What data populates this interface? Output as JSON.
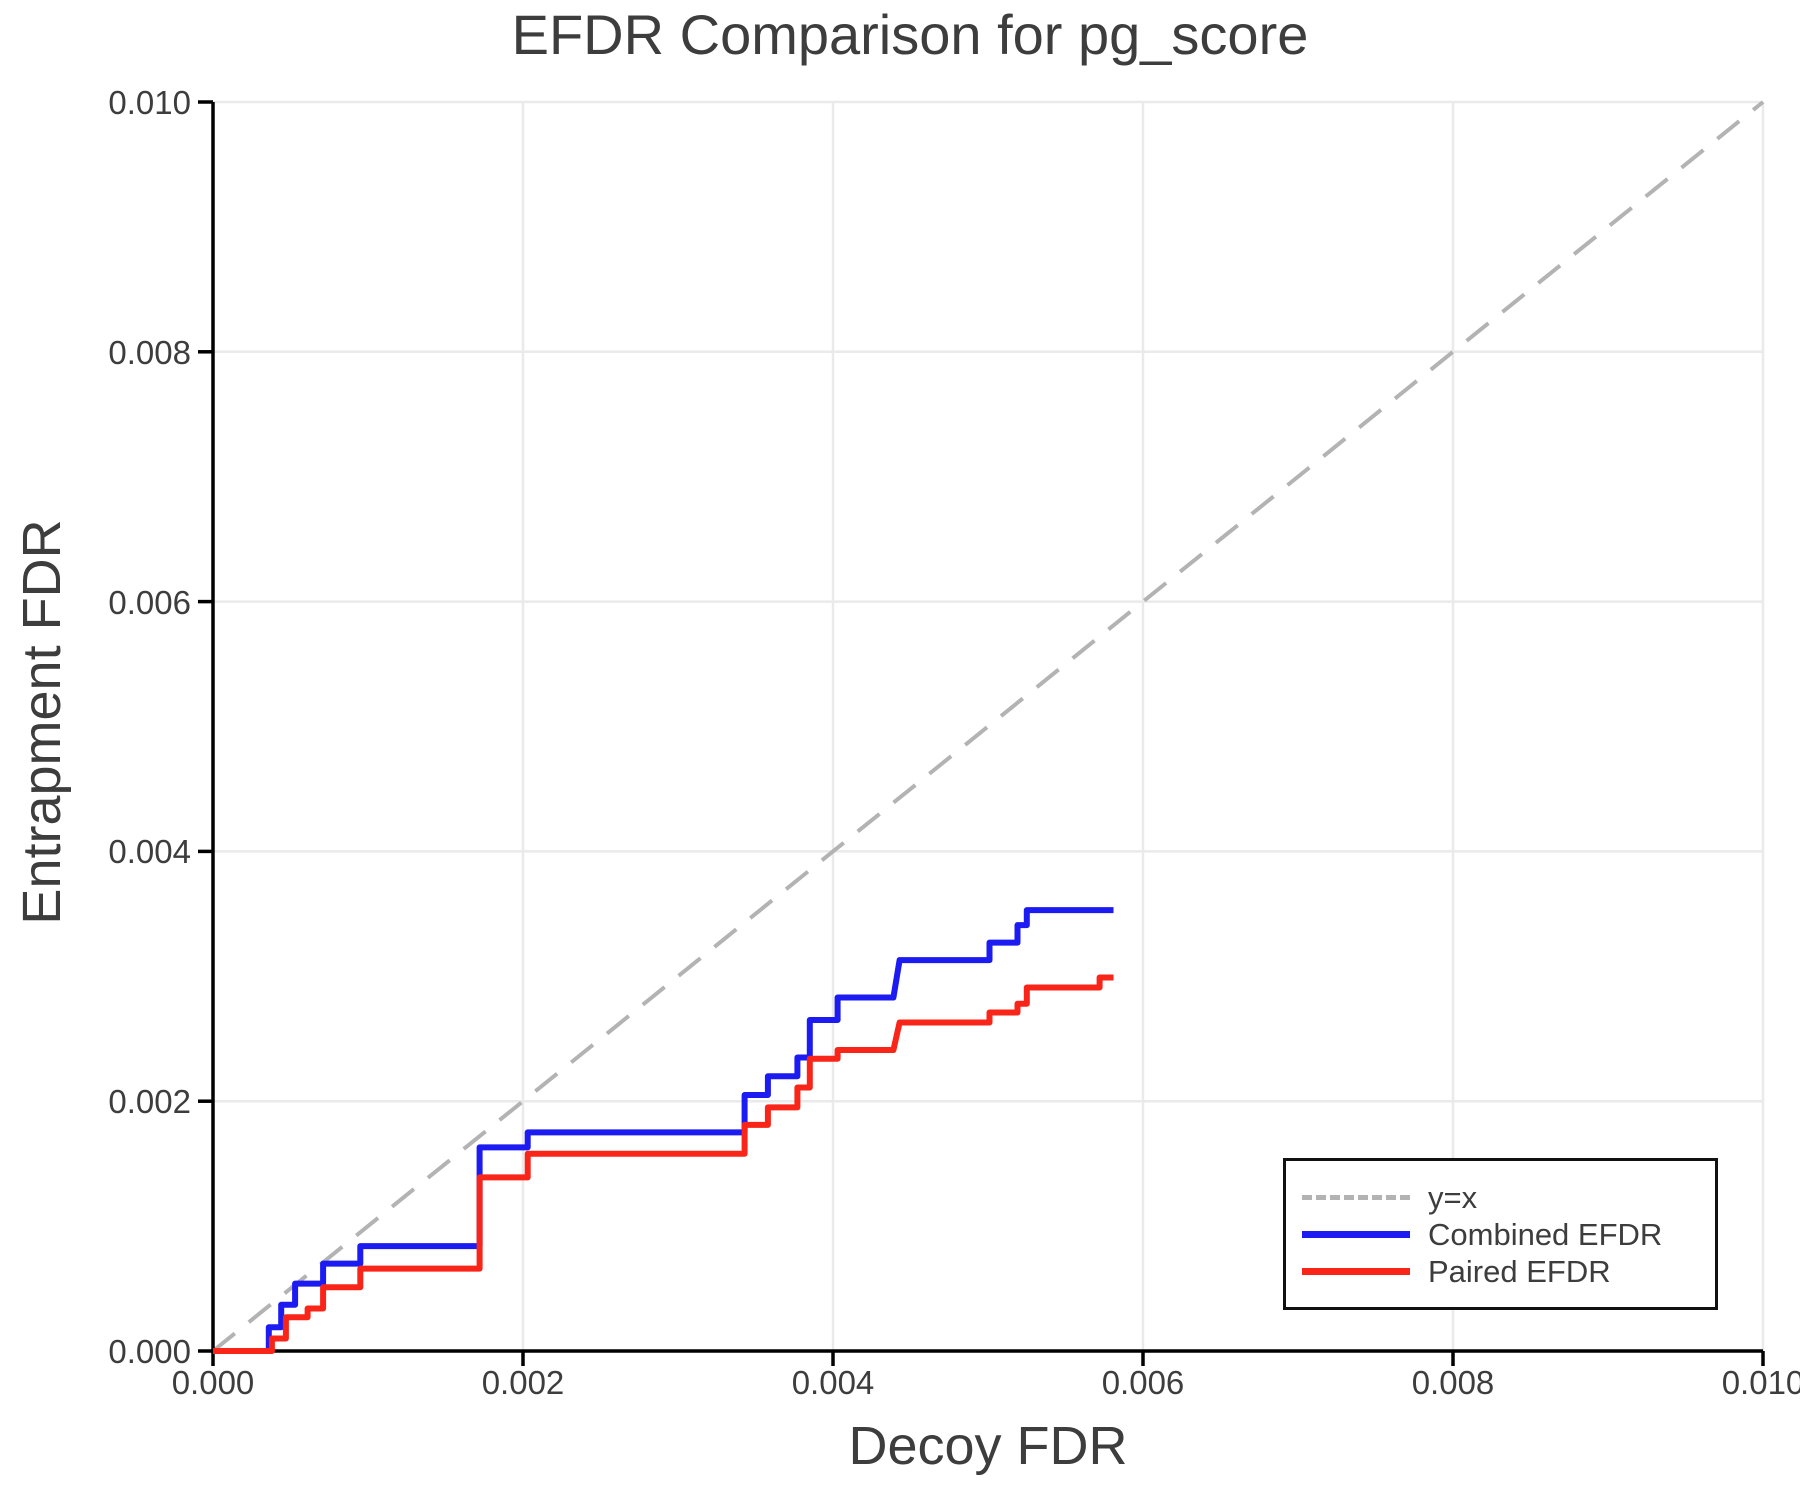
{
  "figure": {
    "title": "EFDR Comparison for pg_score",
    "xlabel": "Decoy FDR",
    "ylabel": "Entrapment FDR"
  },
  "legend": {
    "position": "lower-right",
    "entries": [
      {
        "label": "y=x",
        "color": "#b3b3b3",
        "line_style": "dashed"
      },
      {
        "label": "Combined EFDR",
        "color": "#1b1bf2",
        "line_style": "solid"
      },
      {
        "label": "Paired EFDR",
        "color": "#f92519",
        "line_style": "solid"
      }
    ]
  },
  "chart_data": {
    "type": "line",
    "title": "EFDR Comparison for pg_score",
    "xlabel": "Decoy FDR",
    "ylabel": "Entrapment FDR",
    "xlim": [
      0.0,
      0.01
    ],
    "ylim": [
      0.0,
      0.01
    ],
    "xticks": [
      0.0,
      0.002,
      0.004,
      0.006,
      0.008,
      0.01
    ],
    "yticks": [
      0.0,
      0.002,
      0.004,
      0.006,
      0.008,
      0.01
    ],
    "xtick_labels": [
      "0.000",
      "0.002",
      "0.004",
      "0.006",
      "0.008",
      "0.010"
    ],
    "ytick_labels": [
      "0.000",
      "0.002",
      "0.004",
      "0.006",
      "0.008",
      "0.010"
    ],
    "grid": true,
    "grid_color": "#eaeaea",
    "axis_color": "#000000",
    "text_color": "#3d3d3d",
    "legend_position": "lower-right",
    "reference_line": {
      "label": "y=x",
      "style": "dashed",
      "color": "#b3b3b3",
      "from": [
        0.0,
        0.0
      ],
      "to": [
        0.01,
        0.01
      ]
    },
    "series": [
      {
        "name": "Combined EFDR",
        "color": "#1b1bf2",
        "style": "step",
        "points": [
          [
            0.0,
            0.0
          ],
          [
            0.00036,
            0.0
          ],
          [
            0.00036,
            0.00019
          ],
          [
            0.00044,
            0.00019
          ],
          [
            0.00044,
            0.00037
          ],
          [
            0.00053,
            0.00037
          ],
          [
            0.00053,
            0.00054
          ],
          [
            0.00071,
            0.00054
          ],
          [
            0.00071,
            0.0007
          ],
          [
            0.00095,
            0.0007
          ],
          [
            0.00095,
            0.00084
          ],
          [
            0.00172,
            0.00084
          ],
          [
            0.00172,
            0.00163
          ],
          [
            0.00203,
            0.00163
          ],
          [
            0.00203,
            0.00175
          ],
          [
            0.00343,
            0.00175
          ],
          [
            0.00343,
            0.00205
          ],
          [
            0.00358,
            0.00205
          ],
          [
            0.00358,
            0.0022
          ],
          [
            0.00377,
            0.0022
          ],
          [
            0.00377,
            0.00235
          ],
          [
            0.00385,
            0.00235
          ],
          [
            0.00385,
            0.00265
          ],
          [
            0.00403,
            0.00265
          ],
          [
            0.00403,
            0.00283
          ],
          [
            0.00439,
            0.00283
          ],
          [
            0.00443,
            0.00313
          ],
          [
            0.00501,
            0.00313
          ],
          [
            0.00501,
            0.00327
          ],
          [
            0.00519,
            0.00327
          ],
          [
            0.00519,
            0.00341
          ],
          [
            0.00525,
            0.00341
          ],
          [
            0.00525,
            0.00353
          ],
          [
            0.00581,
            0.00353
          ]
        ]
      },
      {
        "name": "Paired EFDR",
        "color": "#f92519",
        "style": "step",
        "points": [
          [
            0.0,
            0.0
          ],
          [
            0.00038,
            0.0
          ],
          [
            0.00038,
            0.0001
          ],
          [
            0.00047,
            0.0001
          ],
          [
            0.00047,
            0.00027
          ],
          [
            0.00061,
            0.00027
          ],
          [
            0.00061,
            0.00034
          ],
          [
            0.00071,
            0.00034
          ],
          [
            0.00071,
            0.00051
          ],
          [
            0.00095,
            0.00051
          ],
          [
            0.00095,
            0.00066
          ],
          [
            0.00172,
            0.00066
          ],
          [
            0.00172,
            0.00139
          ],
          [
            0.00203,
            0.00139
          ],
          [
            0.00203,
            0.00158
          ],
          [
            0.00343,
            0.00158
          ],
          [
            0.00343,
            0.00181
          ],
          [
            0.00358,
            0.00181
          ],
          [
            0.00358,
            0.00195
          ],
          [
            0.00377,
            0.00195
          ],
          [
            0.00377,
            0.00211
          ],
          [
            0.00385,
            0.00211
          ],
          [
            0.00385,
            0.00234
          ],
          [
            0.00403,
            0.00234
          ],
          [
            0.00403,
            0.00241
          ],
          [
            0.00439,
            0.00241
          ],
          [
            0.00443,
            0.00263
          ],
          [
            0.00501,
            0.00263
          ],
          [
            0.00501,
            0.00271
          ],
          [
            0.00519,
            0.00271
          ],
          [
            0.00519,
            0.00278
          ],
          [
            0.00525,
            0.00278
          ],
          [
            0.00525,
            0.00291
          ],
          [
            0.00572,
            0.00291
          ],
          [
            0.00572,
            0.00299
          ],
          [
            0.00581,
            0.00299
          ]
        ]
      }
    ]
  }
}
